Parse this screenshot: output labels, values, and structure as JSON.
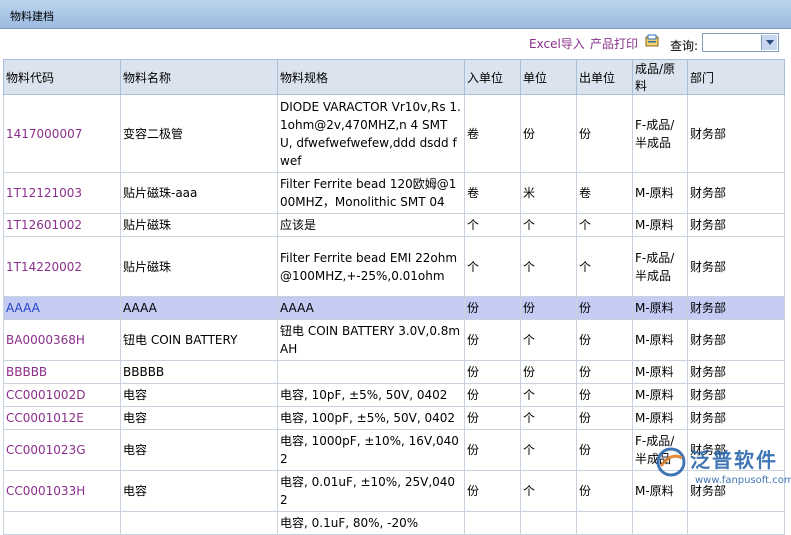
{
  "title": "物料建档",
  "toolbar": {
    "excel_import": "Excel导入",
    "product_print": "产品打印",
    "query_label": "查询:",
    "query_value": ""
  },
  "table": {
    "headers": [
      "物料代码",
      "物料名称",
      "物料规格",
      "入单位",
      "单位",
      "出单位",
      "成品/原料",
      "部门"
    ],
    "rows": [
      {
        "code": "1417000007",
        "name": "变容二极管",
        "spec": "DIODE VARACTOR Vr10v,Rs 1.1ohm@2v,470MHZ,n 4 SMT U, dfwefwefwefew,ddd dsdd fwef",
        "in": "卷",
        "unit": "份",
        "out": "份",
        "type": "F-成品/半成品",
        "dept": "财务部"
      },
      {
        "code": "1T12121003",
        "name": "贴片磁珠-aaa",
        "spec": "Filter Ferrite bead 120欧姆@100MHZ，Monolithic SMT 04",
        "in": "卷",
        "unit": "米",
        "out": "卷",
        "type": "M-原料",
        "dept": "财务部"
      },
      {
        "code": "1T12601002",
        "name": "贴片磁珠",
        "spec": "应该是",
        "in": "个",
        "unit": "个",
        "out": "个",
        "type": "M-原料",
        "dept": "财务部"
      },
      {
        "code": "1T14220002",
        "name": "贴片磁珠",
        "spec": "Filter Ferrite bead EMI 22ohm@100MHZ,+-25%,0.01ohm",
        "in": "个",
        "unit": "个",
        "out": "个",
        "type": "F-成品/半成品",
        "dept": "财务部"
      },
      {
        "code": "AAAA",
        "name": "AAAA",
        "spec": "AAAA",
        "in": "份",
        "unit": "份",
        "out": "份",
        "type": "M-原料",
        "dept": "财务部"
      },
      {
        "code": "BA0000368H",
        "name": "钮电 COIN BATTERY",
        "spec": "钮电 COIN BATTERY 3.0V,0.8mAH",
        "in": "份",
        "unit": "个",
        "out": "份",
        "type": "M-原料",
        "dept": "财务部"
      },
      {
        "code": "BBBBB",
        "name": "BBBBB",
        "spec": "",
        "in": "份",
        "unit": "份",
        "out": "份",
        "type": "M-原料",
        "dept": "财务部"
      },
      {
        "code": "CC0001002D",
        "name": "电容",
        "spec": "电容, 10pF, ±5%, 50V, 0402",
        "in": "份",
        "unit": "个",
        "out": "份",
        "type": "M-原料",
        "dept": "财务部"
      },
      {
        "code": "CC0001012E",
        "name": "电容",
        "spec": "电容, 100pF, ±5%, 50V, 0402",
        "in": "份",
        "unit": "个",
        "out": "份",
        "type": "M-原料",
        "dept": "财务部"
      },
      {
        "code": "CC0001023G",
        "name": "电容",
        "spec": "电容, 1000pF, ±10%, 16V,0402",
        "in": "份",
        "unit": "个",
        "out": "份",
        "type": "F-成品/半成品",
        "dept": "财务部"
      },
      {
        "code": "CC0001033H",
        "name": "电容",
        "spec": "电容, 0.01uF, ±10%, 25V,0402",
        "in": "份",
        "unit": "个",
        "out": "份",
        "type": "M-原料",
        "dept": "财务部"
      },
      {
        "code": "",
        "name": "",
        "spec": "电容, 0.1uF, 80%, -20%",
        "in": "",
        "unit": "",
        "out": "",
        "type": "",
        "dept": ""
      }
    ]
  },
  "watermark": {
    "brand": "泛普软件",
    "url": "www.fanpusoft.com"
  }
}
